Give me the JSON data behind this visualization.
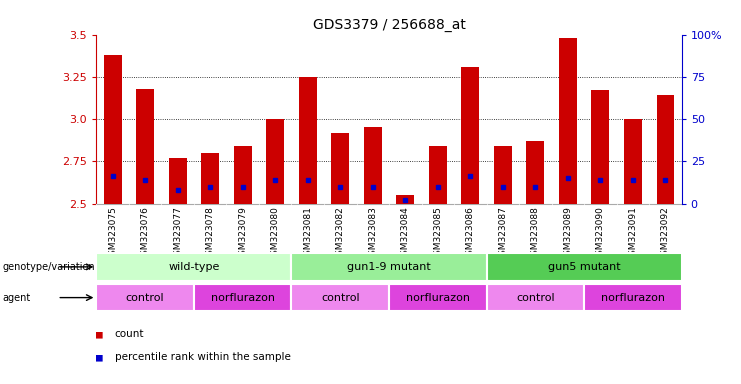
{
  "title": "GDS3379 / 256688_at",
  "samples": [
    "GSM323075",
    "GSM323076",
    "GSM323077",
    "GSM323078",
    "GSM323079",
    "GSM323080",
    "GSM323081",
    "GSM323082",
    "GSM323083",
    "GSM323084",
    "GSM323085",
    "GSM323086",
    "GSM323087",
    "GSM323088",
    "GSM323089",
    "GSM323090",
    "GSM323091",
    "GSM323092"
  ],
  "count_values": [
    3.38,
    3.18,
    2.77,
    2.8,
    2.84,
    3.0,
    3.25,
    2.92,
    2.95,
    2.55,
    2.84,
    3.31,
    2.84,
    2.87,
    3.48,
    3.17,
    3.0,
    3.14
  ],
  "percentile_values": [
    16,
    14,
    8,
    10,
    10,
    14,
    14,
    10,
    10,
    2,
    10,
    16,
    10,
    10,
    15,
    14,
    14,
    14
  ],
  "ymin": 2.5,
  "ymax": 3.5,
  "yticks_left": [
    2.5,
    2.75,
    3.0,
    3.25,
    3.5
  ],
  "yticks_right": [
    0,
    25,
    50,
    75,
    100
  ],
  "bar_color": "#CC0000",
  "marker_color": "#0000CC",
  "bg_color": "#FFFFFF",
  "genotype_groups": [
    {
      "label": "wild-type",
      "start": 0,
      "end": 6,
      "color": "#CCFFCC"
    },
    {
      "label": "gun1-9 mutant",
      "start": 6,
      "end": 12,
      "color": "#99EE99"
    },
    {
      "label": "gun5 mutant",
      "start": 12,
      "end": 18,
      "color": "#55CC55"
    }
  ],
  "agent_groups": [
    {
      "label": "control",
      "start": 0,
      "end": 3,
      "color": "#EE88EE"
    },
    {
      "label": "norflurazon",
      "start": 3,
      "end": 6,
      "color": "#DD44DD"
    },
    {
      "label": "control",
      "start": 6,
      "end": 9,
      "color": "#EE88EE"
    },
    {
      "label": "norflurazon",
      "start": 9,
      "end": 12,
      "color": "#DD44DD"
    },
    {
      "label": "control",
      "start": 12,
      "end": 15,
      "color": "#EE88EE"
    },
    {
      "label": "norflurazon",
      "start": 15,
      "end": 18,
      "color": "#DD44DD"
    }
  ],
  "xlabel_fontsize": 6.5,
  "title_fontsize": 10,
  "tick_fontsize": 8,
  "left_tick_color": "#CC0000",
  "right_tick_color": "#0000CC",
  "label_fontsize": 8,
  "annot_fontsize": 8
}
